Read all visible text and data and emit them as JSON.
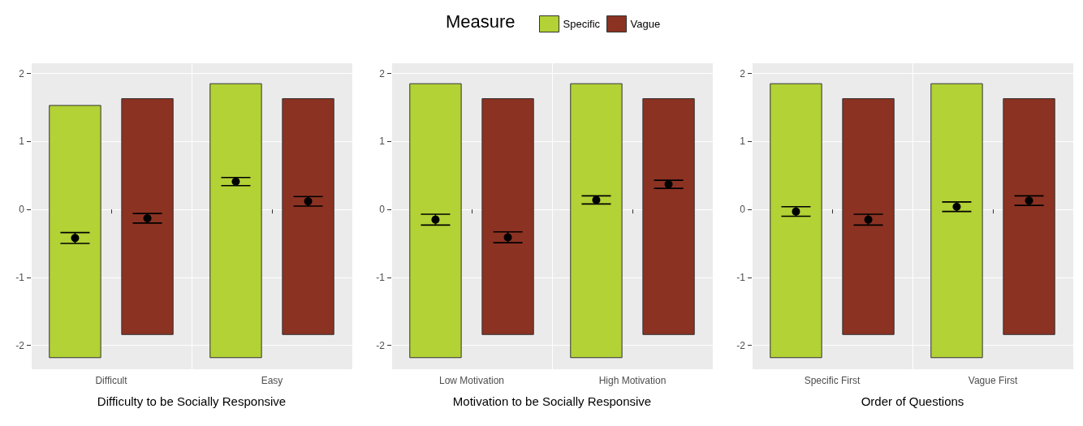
{
  "chart_data": [
    {
      "type": "bar",
      "xlabel": "Difficulty to be Socially Responsive",
      "categories": [
        "Difficult",
        "Easy"
      ],
      "ylim": [
        -2.35,
        2.15
      ],
      "yticks": [
        -2,
        -1,
        0,
        1,
        2
      ],
      "grid": true,
      "series": [
        {
          "color": "#b2d235",
          "base": [
            -2.18,
            -2.18
          ],
          "values": [
            3.71,
            4.03
          ]
        },
        {
          "color": "#8b3222",
          "base": [
            -1.84,
            -1.84
          ],
          "values": [
            3.47,
            3.47
          ]
        },
        {
          "type": "scatter",
          "color": "#000000",
          "x": [
            "Difficult",
            "Easy"
          ],
          "values": [
            -0.42,
            0.41
          ],
          "errors": [
            0.08,
            0.06
          ]
        },
        {
          "type": "scatter",
          "color": "#000000",
          "x": [
            "Difficult",
            "Easy"
          ],
          "values": [
            -0.13,
            0.12
          ],
          "errors": [
            0.07,
            0.07
          ]
        }
      ]
    },
    {
      "type": "bar",
      "xlabel": "Motivation to be Socially Responsive",
      "legend_title": "Measure",
      "legend": "top",
      "categories": [
        "Low Motivation",
        "High Motivation"
      ],
      "ylim": [
        -2.35,
        2.15
      ],
      "yticks": [
        -2,
        -1,
        0,
        1,
        2
      ],
      "grid": true,
      "series": [
        {
          "name": "Specific",
          "color": "#b2d235",
          "base": [
            -2.18,
            -2.18
          ],
          "values": [
            4.03,
            4.03
          ]
        },
        {
          "name": "Vague",
          "color": "#8b3222",
          "base": [
            -1.84,
            -1.84
          ],
          "values": [
            3.47,
            3.47
          ]
        },
        {
          "type": "scatter",
          "color": "#000000",
          "x": [
            "Low Motivation",
            "High Motivation"
          ],
          "values": [
            -0.15,
            0.14
          ],
          "errors": [
            0.08,
            0.06
          ]
        },
        {
          "type": "scatter",
          "color": "#000000",
          "x": [
            "Low Motivation",
            "High Motivation"
          ],
          "values": [
            -0.41,
            0.37
          ],
          "errors": [
            0.08,
            0.06
          ]
        }
      ]
    },
    {
      "type": "bar",
      "xlabel": "Order of Questions",
      "categories": [
        "Specific First",
        "Vague First"
      ],
      "ylim": [
        -2.35,
        2.15
      ],
      "yticks": [
        -2,
        -1,
        0,
        1,
        2
      ],
      "grid": true,
      "series": [
        {
          "color": "#b2d235",
          "base": [
            -2.18,
            -2.18
          ],
          "values": [
            4.03,
            4.03
          ]
        },
        {
          "color": "#8b3222",
          "base": [
            -1.84,
            -1.84
          ],
          "values": [
            3.47,
            3.47
          ]
        },
        {
          "type": "scatter",
          "color": "#000000",
          "x": [
            "Specific First",
            "Vague First"
          ],
          "values": [
            -0.03,
            0.04
          ],
          "errors": [
            0.07,
            0.07
          ]
        },
        {
          "type": "scatter",
          "color": "#000000",
          "x": [
            "Specific First",
            "Vague First"
          ],
          "values": [
            -0.15,
            0.13
          ],
          "errors": [
            0.08,
            0.07
          ]
        }
      ]
    }
  ]
}
